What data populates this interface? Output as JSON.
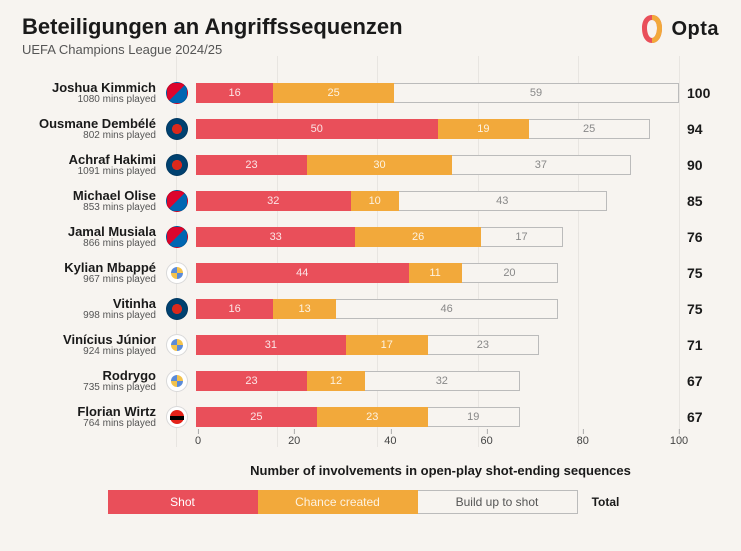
{
  "title": "Beteiligungen an Angriffssequenzen",
  "subtitle": "UEFA Champions League 2024/25",
  "brand": "Opta",
  "xaxis_label": "Number of involvements in open-play shot-ending sequences",
  "colors": {
    "shot": "#e94f5a",
    "chance": "#f2a93b",
    "buildup_bg": "#f7f4f0",
    "buildup_border": "#bbbbbb",
    "background": "#f7f4f0",
    "text": "#1a1a1a",
    "subtext": "#555555"
  },
  "xaxis": {
    "min": 0,
    "max": 100,
    "ticks": [
      0,
      20,
      40,
      60,
      80,
      100
    ]
  },
  "legend": {
    "shot": "Shot",
    "chance": "Chance created",
    "buildup": "Build up to shot",
    "total": "Total"
  },
  "players": [
    {
      "name": "Joshua Kimmich",
      "mins": "1080 mins played",
      "club": "fcb",
      "shot": 16,
      "chance": 25,
      "buildup": 59,
      "total": 100
    },
    {
      "name": "Ousmane Dembélé",
      "mins": "802 mins played",
      "club": "psg",
      "shot": 50,
      "chance": 19,
      "buildup": 25,
      "total": 94
    },
    {
      "name": "Achraf Hakimi",
      "mins": "1091 mins played",
      "club": "psg",
      "shot": 23,
      "chance": 30,
      "buildup": 37,
      "total": 90
    },
    {
      "name": "Michael Olise",
      "mins": "853 mins played",
      "club": "fcb",
      "shot": 32,
      "chance": 10,
      "buildup": 43,
      "total": 85
    },
    {
      "name": "Jamal Musiala",
      "mins": "866 mins played",
      "club": "fcb",
      "shot": 33,
      "chance": 26,
      "buildup": 17,
      "total": 76
    },
    {
      "name": "Kylian Mbappé",
      "mins": "967 mins played",
      "club": "rma",
      "shot": 44,
      "chance": 11,
      "buildup": 20,
      "total": 75
    },
    {
      "name": "Vitinha",
      "mins": "998 mins played",
      "club": "psg",
      "shot": 16,
      "chance": 13,
      "buildup": 46,
      "total": 75
    },
    {
      "name": "Vinícius Júnior",
      "mins": "924 mins played",
      "club": "rma",
      "shot": 31,
      "chance": 17,
      "buildup": 23,
      "total": 71
    },
    {
      "name": "Rodrygo",
      "mins": "735 mins played",
      "club": "rma",
      "shot": 23,
      "chance": 12,
      "buildup": 32,
      "total": 67
    },
    {
      "name": "Florian Wirtz",
      "mins": "764 mins played",
      "club": "b04",
      "shot": 25,
      "chance": 23,
      "buildup": 19,
      "total": 67
    }
  ]
}
